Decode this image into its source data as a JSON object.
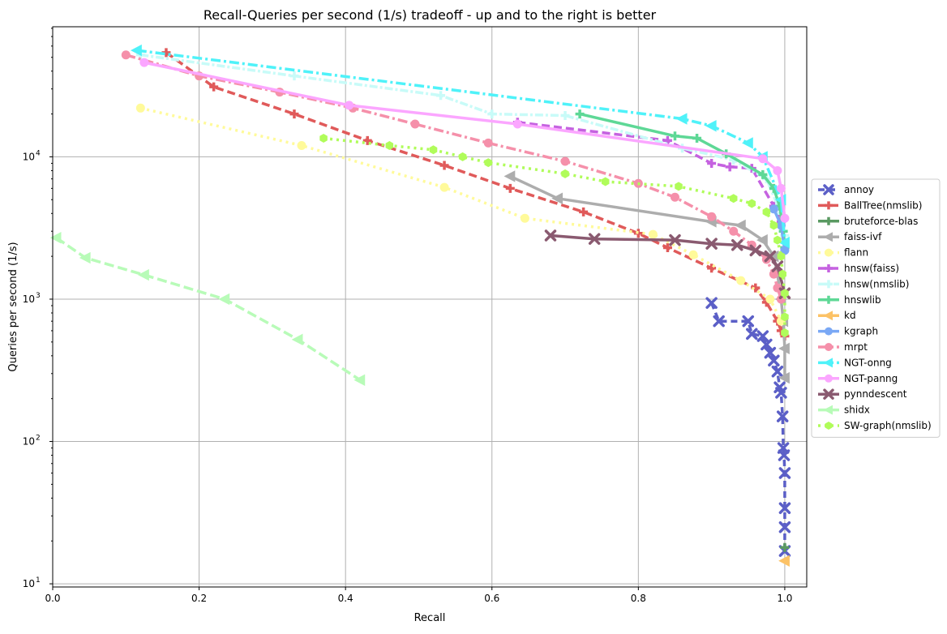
{
  "chart_data": {
    "type": "line",
    "title": "Recall-Queries per second (1/s) tradeoff - up and to the right is better",
    "xlabel": "Recall",
    "ylabel": "Queries per second (1/s)",
    "xlim": [
      0,
      1.03
    ],
    "ylim": [
      9.5,
      82000
    ],
    "yscale": "log",
    "grid": true,
    "legend_position": "right",
    "xticks": [
      {
        "value": 0.0,
        "label": "0.0"
      },
      {
        "value": 0.2,
        "label": "0.2"
      },
      {
        "value": 0.4,
        "label": "0.4"
      },
      {
        "value": 0.6,
        "label": "0.6"
      },
      {
        "value": 0.8,
        "label": "0.8"
      },
      {
        "value": 1.0,
        "label": "1.0"
      }
    ],
    "yticks": [
      {
        "value": 10,
        "label": "10",
        "exp": "1"
      },
      {
        "value": 100,
        "label": "10",
        "exp": "2"
      },
      {
        "value": 1000,
        "label": "10",
        "exp": "3"
      },
      {
        "value": 10000,
        "label": "10",
        "exp": "4"
      }
    ],
    "series": [
      {
        "name": "annoy",
        "color": "#5b5fc7",
        "dash": "8,5",
        "marker": "x",
        "x": [
          0.9,
          0.91,
          0.95,
          0.955,
          0.97,
          0.975,
          0.98,
          0.985,
          0.99,
          0.993,
          0.995,
          0.997,
          0.998,
          0.999,
          1.0,
          1.0,
          1.0,
          1.0
        ],
        "y": [
          940,
          700,
          700,
          570,
          550,
          480,
          420,
          370,
          310,
          240,
          220,
          150,
          90,
          80,
          60,
          34,
          25,
          17
        ]
      },
      {
        "name": "BallTree(nmslib)",
        "color": "#e05a5a",
        "dash": "10,5",
        "marker": "plus",
        "x": [
          0.155,
          0.22,
          0.33,
          0.43,
          0.535,
          0.625,
          0.725,
          0.8,
          0.84,
          0.9,
          0.96,
          0.975,
          0.99,
          0.995,
          1.0
        ],
        "y": [
          54000,
          31000,
          20000,
          13000,
          8700,
          6000,
          4100,
          2900,
          2300,
          1650,
          1200,
          950,
          700,
          600,
          550
        ]
      },
      {
        "name": "bruteforce-blas",
        "color": "#5a9a62",
        "dash": "",
        "marker": "plus",
        "x": [
          1.0
        ],
        "y": [
          18
        ]
      },
      {
        "name": "faiss-ivf",
        "color": "#adadad",
        "dash": "",
        "marker": "triangle-left",
        "x": [
          0.625,
          0.69,
          0.9,
          0.94,
          0.97,
          0.985,
          0.99,
          0.995,
          0.998,
          1.0,
          1.0
        ],
        "y": [
          7300,
          5100,
          3500,
          3300,
          2600,
          2000,
          1500,
          1000,
          700,
          450,
          280
        ]
      },
      {
        "name": "flann",
        "color": "#fffa9a",
        "dash": "3,5",
        "marker": "circle",
        "x": [
          0.12,
          0.34,
          0.535,
          0.645,
          0.82,
          0.875,
          0.94,
          0.98,
          0.995
        ],
        "y": [
          22000,
          12000,
          6100,
          3700,
          2850,
          2050,
          1350,
          1000,
          700
        ]
      },
      {
        "name": "hnsw(faiss)",
        "color": "#c562e0",
        "dash": "10,5",
        "marker": "plus",
        "x": [
          0.635,
          0.84,
          0.9,
          0.925,
          0.955,
          0.985,
          0.995,
          1.0
        ],
        "y": [
          17500,
          13000,
          9000,
          8500,
          8300,
          4500,
          3500,
          2300
        ]
      },
      {
        "name": "hnsw(nmslib)",
        "color": "#c8fbf8",
        "dash": "10,3,3,3",
        "marker": "plus",
        "x": [
          0.12,
          0.33,
          0.53,
          0.6,
          0.7,
          0.86,
          0.93,
          0.975,
          0.995,
          1.0
        ],
        "y": [
          52000,
          37000,
          27000,
          20000,
          19500,
          11500,
          9500,
          7000,
          4000,
          2800
        ]
      },
      {
        "name": "hnswlib",
        "color": "#5ed896",
        "dash": "",
        "marker": "plus",
        "x": [
          0.72,
          0.85,
          0.88,
          0.92,
          0.97,
          0.985,
          0.993,
          0.998,
          1.0
        ],
        "y": [
          20000,
          14000,
          13500,
          10500,
          7500,
          6000,
          4500,
          3000,
          2300
        ]
      },
      {
        "name": "kd",
        "color": "#fcc266",
        "dash": "",
        "marker": "triangle-left",
        "x": [
          1.0
        ],
        "y": [
          14.5
        ]
      },
      {
        "name": "kgraph",
        "color": "#7aa8f5",
        "dash": "",
        "marker": "circle",
        "x": [
          0.985,
          0.995,
          1.0
        ],
        "y": [
          4300,
          3300,
          2200
        ]
      },
      {
        "name": "mrpt",
        "color": "#f590aa",
        "dash": "12,4,3,4",
        "marker": "circle",
        "x": [
          0.1,
          0.2,
          0.31,
          0.41,
          0.495,
          0.595,
          0.7,
          0.8,
          0.85,
          0.9,
          0.93,
          0.955,
          0.975,
          0.985,
          0.99,
          0.995
        ],
        "y": [
          52000,
          37000,
          28500,
          22000,
          17000,
          12500,
          9300,
          6500,
          5200,
          3800,
          3000,
          2400,
          1900,
          1500,
          1200,
          1000
        ]
      },
      {
        "name": "NGT-onng",
        "color": "#4ff2f9",
        "dash": "12,4,3,4",
        "marker": "triangle-left",
        "x": [
          0.115,
          0.86,
          0.9,
          0.95,
          0.97,
          0.995,
          1.0
        ],
        "y": [
          56000,
          18500,
          16500,
          12500,
          10000,
          5000,
          2500
        ]
      },
      {
        "name": "NGT-panng",
        "color": "#fba6ff",
        "dash": "",
        "marker": "circle",
        "x": [
          0.125,
          0.405,
          0.635,
          0.97,
          0.99,
          0.995,
          1.0
        ],
        "y": [
          46000,
          23000,
          17000,
          9700,
          8000,
          6000,
          3700
        ]
      },
      {
        "name": "pynndescent",
        "color": "#8a5a70",
        "dash": "",
        "marker": "x",
        "x": [
          0.68,
          0.74,
          0.85,
          0.9,
          0.935,
          0.96,
          0.98,
          0.99,
          1.0
        ],
        "y": [
          2800,
          2650,
          2600,
          2450,
          2400,
          2200,
          2000,
          1700,
          1100
        ]
      },
      {
        "name": "shidx",
        "color": "#b8fbb8",
        "dash": "12,5",
        "marker": "triangle-left",
        "x": [
          0.005,
          0.045,
          0.125,
          0.235,
          0.335,
          0.42
        ],
        "y": [
          2700,
          1950,
          1480,
          1000,
          520,
          270
        ]
      },
      {
        "name": "SW-graph(nmslib)",
        "color": "#b0fc5a",
        "dash": "3,5",
        "marker": "hex",
        "x": [
          0.37,
          0.46,
          0.52,
          0.56,
          0.595,
          0.7,
          0.755,
          0.855,
          0.93,
          0.955,
          0.975,
          0.985,
          0.99,
          0.995,
          0.997,
          1.0,
          1.0,
          1.0
        ],
        "y": [
          13500,
          12000,
          11200,
          10000,
          9100,
          7600,
          6700,
          6200,
          5100,
          4700,
          4100,
          3300,
          2600,
          2000,
          1500,
          1100,
          750,
          580
        ]
      }
    ]
  }
}
